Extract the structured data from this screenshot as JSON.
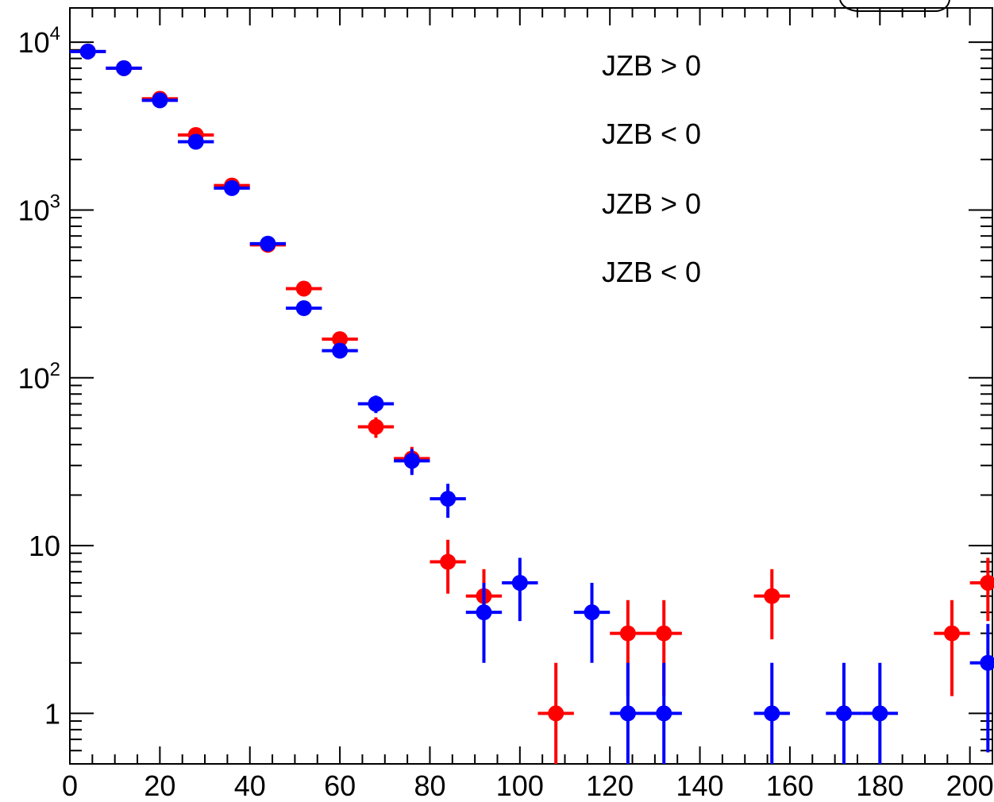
{
  "chart_data": {
    "type": "scatter",
    "title": "",
    "xlabel": "",
    "ylabel": "",
    "xlim": [
      0,
      205
    ],
    "ylim": [
      0.5,
      16000
    ],
    "yscale": "log",
    "grid": false,
    "x_ticks": [
      "0",
      "20",
      "40",
      "60",
      "80",
      "100",
      "120",
      "140",
      "160",
      "180",
      "200"
    ],
    "y_ticks": [
      {
        "value": 1,
        "base": "1",
        "exp": ""
      },
      {
        "value": 10,
        "base": "10",
        "exp": ""
      },
      {
        "value": 100,
        "base": "10",
        "exp": "2"
      },
      {
        "value": 1000,
        "base": "10",
        "exp": "3"
      },
      {
        "value": 10000,
        "base": "10",
        "exp": "4"
      }
    ],
    "legend_texts": [
      "JZB > 0",
      "JZB < 0",
      "JZB > 0",
      "JZB < 0"
    ],
    "colors": {
      "red_series": "#ff0000",
      "blue_series": "#0000ff"
    },
    "bin_half_width": 4,
    "series": [
      {
        "color": "#ff0000",
        "points": [
          {
            "x": 4,
            "y": 8800
          },
          {
            "x": 12,
            "y": 7000
          },
          {
            "x": 20,
            "y": 4600
          },
          {
            "x": 28,
            "y": 2800
          },
          {
            "x": 36,
            "y": 1400
          },
          {
            "x": 44,
            "y": 620
          },
          {
            "x": 52,
            "y": 340
          },
          {
            "x": 60,
            "y": 170
          },
          {
            "x": 68,
            "y": 51
          },
          {
            "x": 76,
            "y": 33
          },
          {
            "x": 84,
            "y": 8
          },
          {
            "x": 92,
            "y": 5
          },
          {
            "x": 108,
            "y": 1
          },
          {
            "x": 124,
            "y": 3
          },
          {
            "x": 132,
            "y": 3
          },
          {
            "x": 156,
            "y": 5
          },
          {
            "x": 196,
            "y": 3
          },
          {
            "x": 204,
            "y": 6
          }
        ]
      },
      {
        "color": "#0000ff",
        "points": [
          {
            "x": 4,
            "y": 8800
          },
          {
            "x": 12,
            "y": 7000
          },
          {
            "x": 20,
            "y": 4500
          },
          {
            "x": 28,
            "y": 2550
          },
          {
            "x": 36,
            "y": 1350
          },
          {
            "x": 44,
            "y": 630
          },
          {
            "x": 52,
            "y": 260
          },
          {
            "x": 60,
            "y": 145
          },
          {
            "x": 68,
            "y": 70
          },
          {
            "x": 76,
            "y": 32
          },
          {
            "x": 84,
            "y": 19
          },
          {
            "x": 92,
            "y": 4
          },
          {
            "x": 100,
            "y": 6
          },
          {
            "x": 116,
            "y": 4
          },
          {
            "x": 124,
            "y": 1
          },
          {
            "x": 132,
            "y": 1
          },
          {
            "x": 156,
            "y": 1
          },
          {
            "x": 172,
            "y": 1
          },
          {
            "x": 180,
            "y": 1
          },
          {
            "x": 204,
            "y": 2
          }
        ]
      }
    ]
  }
}
